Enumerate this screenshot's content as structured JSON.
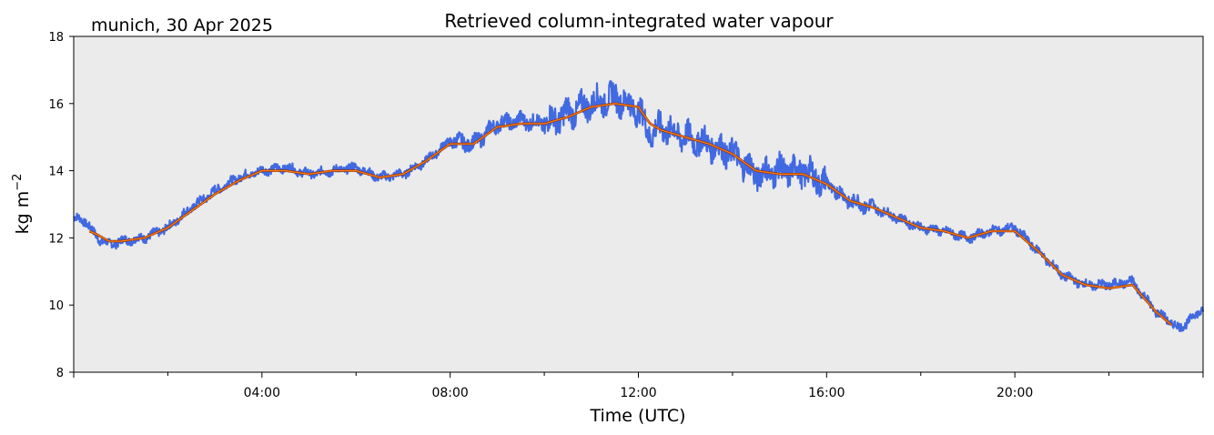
{
  "chart_data": {
    "type": "line",
    "title": "Retrieved column-integrated water vapour",
    "subtitle": "munich, 30 Apr 2025",
    "xlabel": "Time (UTC)",
    "ylabel": "kg m",
    "ylabel_superscript": "−2",
    "xlim": [
      "00:00",
      "24:00"
    ],
    "ylim": [
      8,
      18
    ],
    "xticks": [
      "04:00",
      "08:00",
      "12:00",
      "16:00",
      "20:00"
    ],
    "yticks": [
      8,
      10,
      12,
      14,
      16,
      18
    ],
    "grid": false,
    "background_color": "#ebebeb",
    "series": [
      {
        "role": "raw retrieval",
        "color": "#4169e1",
        "x": [
          "00:00",
          "00:15",
          "00:30",
          "00:45",
          "01:00",
          "01:30",
          "02:00",
          "02:30",
          "03:00",
          "03:30",
          "04:00",
          "04:30",
          "05:00",
          "05:30",
          "06:00",
          "06:30",
          "07:00",
          "07:30",
          "08:00",
          "08:30",
          "09:00",
          "09:30",
          "10:00",
          "10:30",
          "11:00",
          "11:30",
          "12:00",
          "12:15",
          "12:30",
          "13:00",
          "13:30",
          "14:00",
          "14:30",
          "15:00",
          "15:30",
          "16:00",
          "16:30",
          "17:00",
          "17:30",
          "18:00",
          "18:30",
          "19:00",
          "19:30",
          "20:00",
          "20:30",
          "21:00",
          "21:30",
          "22:00",
          "22:30",
          "23:00",
          "23:30",
          "24:00"
        ],
        "values": [
          12.6,
          12.5,
          12.0,
          11.8,
          11.9,
          12.0,
          12.3,
          12.9,
          13.4,
          13.8,
          14.0,
          14.1,
          13.9,
          14.0,
          14.1,
          13.8,
          13.9,
          14.3,
          14.9,
          14.8,
          15.4,
          15.5,
          15.4,
          15.7,
          16.0,
          16.2,
          15.8,
          15.1,
          15.3,
          15.0,
          14.8,
          14.5,
          13.9,
          14.0,
          14.0,
          13.6,
          13.1,
          12.9,
          12.6,
          12.3,
          12.2,
          12.0,
          12.2,
          12.3,
          11.6,
          10.9,
          10.6,
          10.6,
          10.7,
          9.8,
          9.3,
          9.9
        ],
        "noise_band": 0.35
      },
      {
        "role": "smoothed",
        "color": "#ff7f0e",
        "x": [
          "00:20",
          "00:30",
          "00:45",
          "01:00",
          "01:30",
          "02:00",
          "02:30",
          "03:00",
          "03:30",
          "04:00",
          "04:30",
          "05:00",
          "05:30",
          "06:00",
          "06:30",
          "07:00",
          "07:30",
          "08:00",
          "08:30",
          "09:00",
          "09:30",
          "10:00",
          "10:30",
          "11:00",
          "11:30",
          "12:00",
          "12:15",
          "12:30",
          "13:00",
          "13:30",
          "14:00",
          "14:30",
          "15:00",
          "15:30",
          "16:00",
          "16:30",
          "17:00",
          "17:30",
          "18:00",
          "18:30",
          "19:00",
          "19:30",
          "20:00",
          "20:30",
          "21:00",
          "21:30",
          "22:00",
          "22:30",
          "23:00",
          "23:20"
        ],
        "values": [
          12.2,
          12.1,
          11.9,
          11.9,
          12.0,
          12.3,
          12.8,
          13.3,
          13.7,
          14.0,
          14.0,
          13.9,
          14.0,
          14.0,
          13.8,
          13.9,
          14.3,
          14.8,
          14.8,
          15.3,
          15.4,
          15.4,
          15.6,
          15.9,
          16.0,
          15.9,
          15.4,
          15.2,
          15.0,
          14.8,
          14.5,
          14.0,
          13.9,
          13.9,
          13.6,
          13.1,
          12.9,
          12.6,
          12.3,
          12.2,
          12.0,
          12.2,
          12.2,
          11.6,
          10.9,
          10.6,
          10.5,
          10.6,
          9.8,
          9.4
        ]
      }
    ]
  }
}
